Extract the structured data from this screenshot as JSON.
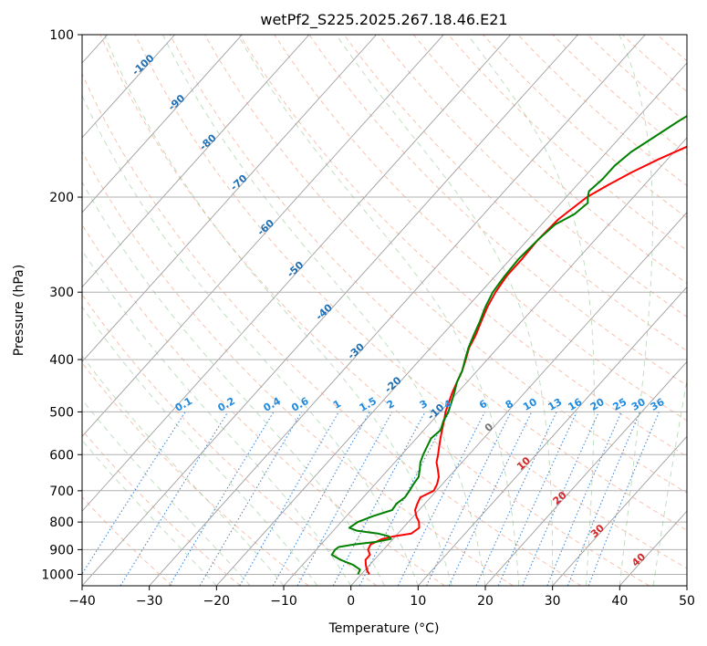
{
  "chart_data": {
    "type": "line",
    "title": "wetPf2_S225.2025.267.18.46.E21",
    "xlabel": "Temperature (°C)",
    "ylabel": "Pressure (hPa)",
    "xlim": [
      -40,
      50
    ],
    "ylim": [
      1050,
      100
    ],
    "y_scale": "log",
    "x_ticks": [
      -40,
      -30,
      -20,
      -10,
      0,
      10,
      20,
      30,
      40,
      50
    ],
    "y_ticks": [
      100,
      200,
      300,
      400,
      500,
      600,
      700,
      800,
      900,
      1000
    ],
    "grid": true,
    "series": [
      {
        "role": "temperature",
        "color": "#ff0000",
        "pressure": [
          1000,
          980,
          960,
          940,
          920,
          900,
          880,
          860,
          850,
          840,
          820,
          800,
          780,
          760,
          740,
          720,
          700,
          680,
          660,
          640,
          620,
          600,
          580,
          560,
          540,
          520,
          500,
          480,
          460,
          440,
          420,
          400,
          380,
          360,
          340,
          320,
          300,
          280,
          260,
          240,
          220,
          210,
          200,
          190,
          180,
          170,
          160,
          150,
          140,
          130,
          120,
          110,
          100
        ],
        "values": [
          1.2,
          0.2,
          -0.6,
          -1.3,
          -1.3,
          -2.3,
          -2.6,
          -1.6,
          -0.2,
          2.0,
          2.4,
          1.6,
          0.4,
          -0.6,
          -1.1,
          -1.5,
          -0.4,
          -0.8,
          -1.5,
          -2.6,
          -3.8,
          -4.6,
          -5.5,
          -6.4,
          -7.3,
          -8.2,
          -9.2,
          -10.0,
          -10.8,
          -11.5,
          -12.2,
          -13.2,
          -14.3,
          -15.0,
          -16.0,
          -17.0,
          -17.8,
          -18.3,
          -18.3,
          -18.5,
          -18.2,
          -17.6,
          -16.9,
          -15.4,
          -13.6,
          -11.3,
          -8.4,
          -5.6,
          -2.5,
          0.5,
          2.7,
          5.1,
          7.5
        ]
      },
      {
        "role": "dewpoint",
        "color": "#008000",
        "pressure": [
          1000,
          980,
          960,
          940,
          920,
          900,
          890,
          880,
          870,
          860,
          850,
          840,
          830,
          820,
          800,
          780,
          760,
          740,
          720,
          700,
          680,
          660,
          640,
          620,
          600,
          580,
          560,
          540,
          520,
          500,
          480,
          460,
          440,
          420,
          400,
          380,
          360,
          340,
          320,
          300,
          280,
          260,
          240,
          225,
          215,
          205,
          200,
          195,
          185,
          175,
          165,
          155,
          145,
          135,
          125,
          115,
          110,
          100
        ],
        "values": [
          -0.5,
          -0.8,
          -2.5,
          -5.0,
          -7.0,
          -7.2,
          -7.0,
          -5.0,
          -2.0,
          -0.3,
          -1.0,
          -3.0,
          -6.5,
          -8.0,
          -7.5,
          -6.0,
          -4.0,
          -4.2,
          -3.8,
          -4.0,
          -4.3,
          -4.5,
          -5.3,
          -6.2,
          -6.8,
          -7.3,
          -7.8,
          -7.5,
          -8.3,
          -8.8,
          -9.6,
          -10.5,
          -11.5,
          -12.2,
          -13.3,
          -14.4,
          -15.3,
          -16.2,
          -17.3,
          -18.2,
          -18.6,
          -18.8,
          -18.5,
          -18.0,
          -16.5,
          -16.0,
          -16.8,
          -17.4,
          -17.0,
          -17.0,
          -16.4,
          -15.0,
          -13.5,
          -11.7,
          -9.7,
          -7.4,
          -5.5,
          -2.3
        ]
      }
    ],
    "isotherm_labels_blue": [
      "-100",
      "-90",
      "-80",
      "-70",
      "-60",
      "-50",
      "-40",
      "-30",
      "-20",
      "-10"
    ],
    "isotherm_labels_red": [
      "10",
      "20",
      "30",
      "40"
    ],
    "isotherm_label_zero": "0",
    "mixing_ratio_labels": [
      "0.1",
      "0.2",
      "0.4",
      "0.6",
      "1",
      "1.5",
      "2",
      "3",
      "4",
      "6",
      "8",
      "10",
      "13",
      "16",
      "20",
      "25",
      "30",
      "36"
    ]
  }
}
